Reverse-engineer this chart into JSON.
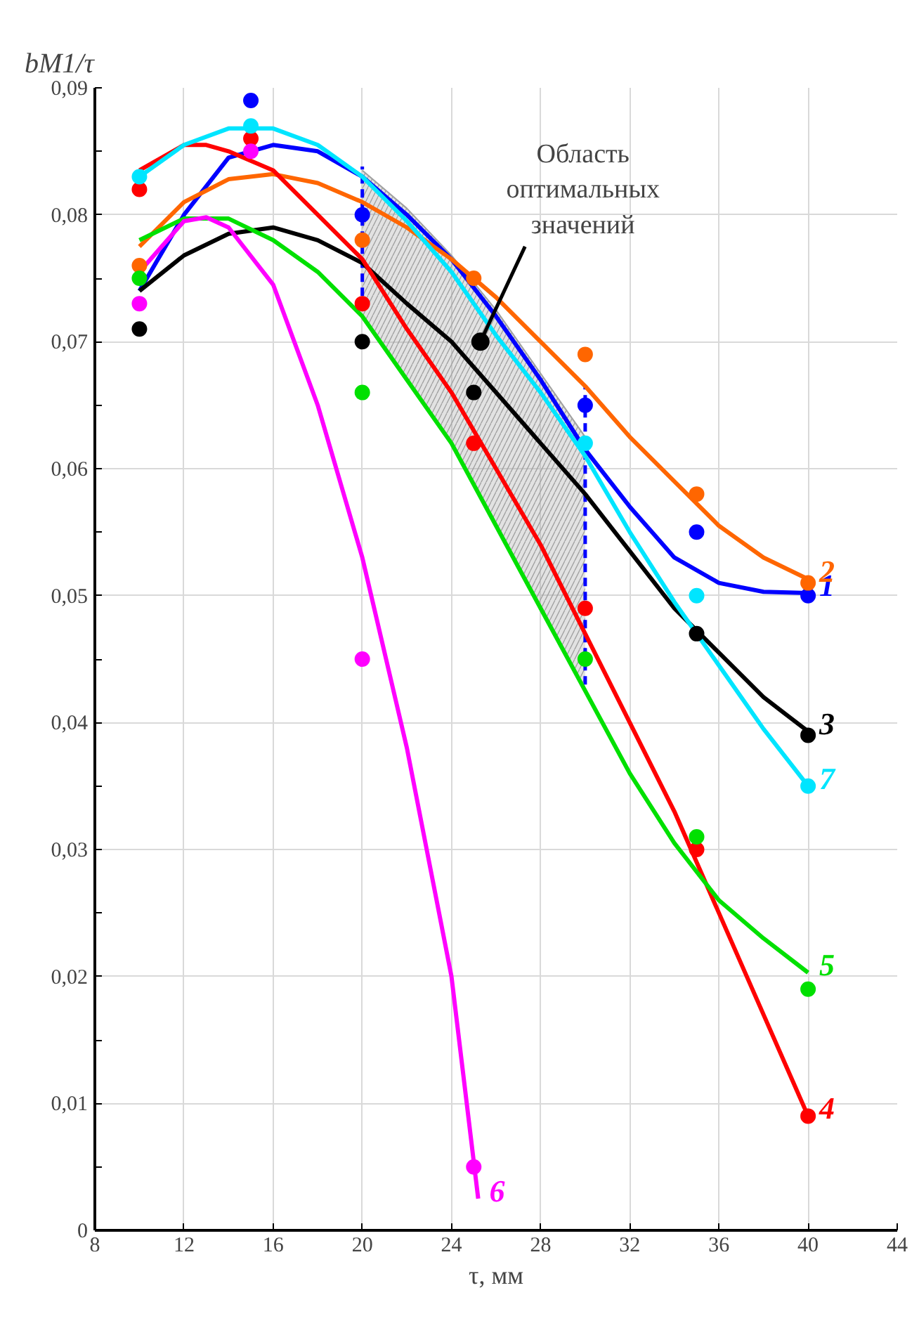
{
  "chart_data": {
    "type": "line",
    "xlabel": "τ, мм",
    "ylabel": "bМ1/τ",
    "xlim": [
      8,
      44
    ],
    "xticks": [
      8,
      12,
      16,
      20,
      24,
      28,
      32,
      36,
      40,
      44
    ],
    "ylim": [
      0,
      0.09
    ],
    "yticks": [
      0,
      {
        "value": 0.01,
        "label": "0,01"
      },
      {
        "value": 0.02,
        "label": "0,02"
      },
      {
        "value": 0.03,
        "label": "0,03"
      },
      {
        "value": 0.04,
        "label": "0,04"
      },
      {
        "value": 0.05,
        "label": "0,05"
      },
      {
        "value": 0.06,
        "label": "0,06"
      },
      {
        "value": 0.07,
        "label": "0,07"
      },
      {
        "value": 0.08,
        "label": "0,08"
      },
      {
        "value": 0.09,
        "label": "0,09"
      }
    ],
    "grid": true,
    "legend": false,
    "line_style": "solid",
    "series": [
      {
        "color": "#a0a0a0",
        "x": [
          20,
          22,
          24,
          26,
          28,
          30
        ],
        "lower": [
          0.072,
          0.067,
          0.062,
          0.0555,
          0.049,
          0.0425
        ],
        "upper": [
          0.0835,
          0.0805,
          0.0768,
          0.0725,
          0.0675,
          0.0625
        ],
        "values": [
          0.0835,
          0.0805,
          0.0768,
          0.0725,
          0.0675,
          0.0625
        ]
      },
      {
        "color": "#0000ff",
        "marker": "none",
        "line_style": "dashed",
        "x": [
          20,
          20
        ],
        "values": [
          0.0725,
          0.0838
        ]
      },
      {
        "color": "#0000ff",
        "marker": "none",
        "line_style": "dashed",
        "x": [
          30,
          30
        ],
        "values": [
          0.043,
          0.0665
        ]
      },
      {
        "name": "1",
        "color": "#0000ff",
        "marker": "none",
        "x": [
          10,
          12,
          14,
          16,
          18,
          20,
          22,
          24,
          26,
          28,
          30,
          32,
          34,
          36,
          38,
          40
        ],
        "values": [
          0.074,
          0.08,
          0.0845,
          0.0855,
          0.085,
          0.083,
          0.08,
          0.0765,
          0.072,
          0.067,
          0.0615,
          0.057,
          0.053,
          0.051,
          0.0503,
          0.0502
        ]
      },
      {
        "name": "2",
        "color": "#ff6600",
        "marker": "none",
        "x": [
          10,
          12,
          14,
          16,
          18,
          20,
          22,
          24,
          26,
          28,
          30,
          32,
          34,
          36,
          38,
          40
        ],
        "values": [
          0.0775,
          0.081,
          0.0828,
          0.0832,
          0.0825,
          0.081,
          0.079,
          0.0765,
          0.0735,
          0.07,
          0.0665,
          0.0625,
          0.059,
          0.0555,
          0.053,
          0.0513
        ]
      },
      {
        "name": "3",
        "color": "#000000",
        "marker": "none",
        "x": [
          10,
          12,
          14,
          16,
          18,
          20,
          22,
          24,
          26,
          28,
          30,
          32,
          34,
          36,
          38,
          40
        ],
        "values": [
          0.074,
          0.0768,
          0.0785,
          0.079,
          0.078,
          0.0762,
          0.073,
          0.07,
          0.066,
          0.062,
          0.058,
          0.0535,
          0.049,
          0.0455,
          0.042,
          0.0393
        ]
      },
      {
        "name": "4",
        "color": "#ff0000",
        "marker": "none",
        "x": [
          10,
          12,
          13,
          14,
          16,
          18,
          20,
          22,
          24,
          26,
          28,
          30,
          32,
          34,
          36,
          38,
          40
        ],
        "values": [
          0.0835,
          0.0855,
          0.0855,
          0.085,
          0.0835,
          0.08,
          0.0765,
          0.071,
          0.066,
          0.06,
          0.054,
          0.047,
          0.04,
          0.033,
          0.025,
          0.017,
          0.009
        ]
      },
      {
        "name": "5",
        "color": "#00e000",
        "marker": "none",
        "x": [
          10,
          12,
          14,
          16,
          18,
          20,
          22,
          24,
          26,
          28,
          30,
          32,
          34,
          36,
          38,
          40
        ],
        "values": [
          0.078,
          0.0797,
          0.0797,
          0.078,
          0.0755,
          0.072,
          0.067,
          0.062,
          0.0555,
          0.049,
          0.0425,
          0.036,
          0.0305,
          0.026,
          0.023,
          0.0203
        ]
      },
      {
        "name": "6",
        "color": "#ff00ff",
        "marker": "none",
        "x": [
          10,
          12,
          13,
          14,
          16,
          18,
          20,
          22,
          24,
          25.2
        ],
        "values": [
          0.0755,
          0.0795,
          0.0798,
          0.079,
          0.0745,
          0.065,
          0.053,
          0.038,
          0.02,
          0.0025
        ]
      },
      {
        "name": "7",
        "color": "#00e5ff",
        "marker": "none",
        "x": [
          10,
          12,
          14,
          16,
          18,
          20,
          22,
          24,
          26,
          28,
          30,
          32,
          34,
          36,
          38,
          40
        ],
        "values": [
          0.083,
          0.0855,
          0.0868,
          0.0868,
          0.0855,
          0.083,
          0.0795,
          0.0755,
          0.0705,
          0.066,
          0.061,
          0.055,
          0.0495,
          0.0445,
          0.0395,
          0.035
        ]
      },
      {
        "type": "scatter",
        "marker": "circle",
        "color": "#0000ff",
        "x": [
          15,
          20,
          30,
          35,
          40
        ],
        "values": [
          0.089,
          0.08,
          0.065,
          0.055,
          0.05
        ]
      },
      {
        "type": "scatter",
        "marker": "circle",
        "color": "#ff6600",
        "x": [
          10,
          20,
          25,
          30,
          35,
          40
        ],
        "values": [
          0.076,
          0.078,
          0.075,
          0.069,
          0.058,
          0.051
        ]
      },
      {
        "type": "scatter",
        "marker": "circle",
        "color": "#000000",
        "x": [
          10,
          20,
          25,
          35,
          40
        ],
        "values": [
          0.071,
          0.07,
          0.066,
          0.047,
          0.039
        ]
      },
      {
        "type": "scatter",
        "marker": "circle",
        "color": "#ff0000",
        "x": [
          10,
          15,
          20,
          25,
          30,
          35,
          40
        ],
        "values": [
          0.082,
          0.086,
          0.073,
          0.062,
          0.049,
          0.03,
          0.009
        ]
      },
      {
        "type": "scatter",
        "marker": "circle",
        "color": "#00e000",
        "x": [
          10,
          20,
          30,
          35,
          40
        ],
        "values": [
          0.075,
          0.066,
          0.045,
          0.031,
          0.019
        ]
      },
      {
        "type": "scatter",
        "marker": "circle",
        "color": "#ff00ff",
        "x": [
          10,
          15,
          20,
          25
        ],
        "values": [
          0.073,
          0.085,
          0.045,
          0.005
        ]
      },
      {
        "type": "scatter",
        "marker": "circle",
        "color": "#00e5ff",
        "x": [
          10,
          15,
          30,
          35,
          40
        ],
        "values": [
          0.083,
          0.087,
          0.062,
          0.05,
          0.035
        ]
      }
    ],
    "annotations": [
      {
        "text": "Область\nоптимальных\nзначений",
        "x": 25.3,
        "y": 0.07
      }
    ]
  }
}
